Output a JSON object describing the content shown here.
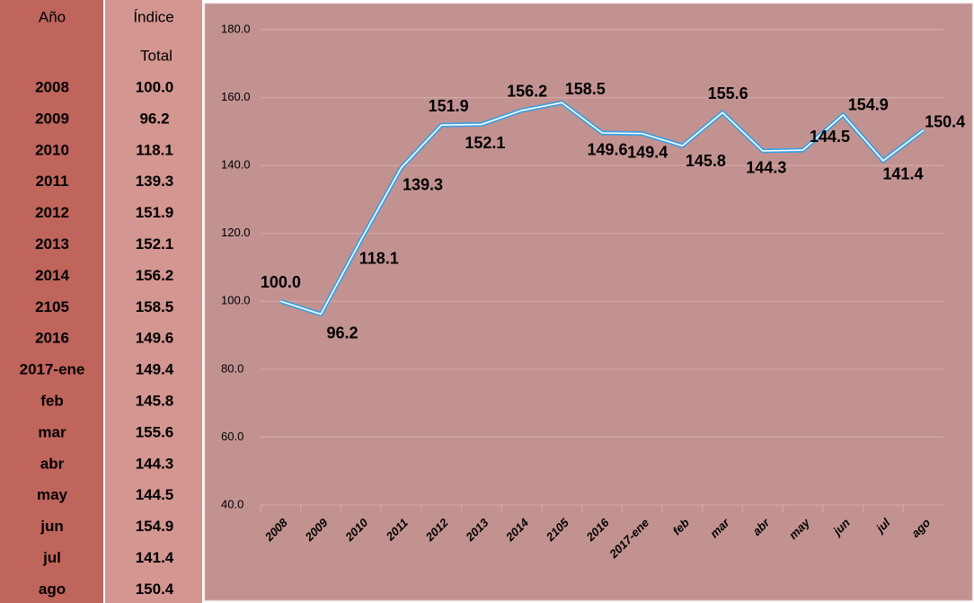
{
  "table": {
    "header": {
      "year": "Año",
      "index": [
        "Índice",
        "Total"
      ]
    },
    "rows": [
      [
        "2008",
        "100.0"
      ],
      [
        "2009",
        "96.2"
      ],
      [
        "2010",
        "118.1"
      ],
      [
        "2011",
        "139.3"
      ],
      [
        "2012",
        "151.9"
      ],
      [
        "2013",
        "152.1"
      ],
      [
        "2014",
        "156.2"
      ],
      [
        "2105",
        "158.5"
      ],
      [
        "2016",
        "149.6"
      ],
      [
        "2017-ene",
        "149.4"
      ],
      [
        "feb",
        "145.8"
      ],
      [
        "mar",
        "155.6"
      ],
      [
        "abr",
        "144.3"
      ],
      [
        "may",
        "144.5"
      ],
      [
        "jun",
        "154.9"
      ],
      [
        "jul",
        "141.4"
      ],
      [
        "ago",
        "150.4"
      ]
    ]
  },
  "chart_data": {
    "type": "line",
    "categories": [
      "2008",
      "2009",
      "2010",
      "2011",
      "2012",
      "2013",
      "2014",
      "2105",
      "2016",
      "2017-ene",
      "feb",
      "mar",
      "abr",
      "may",
      "jun",
      "jul",
      "ago"
    ],
    "series": [
      {
        "name": "Índice Total",
        "color": "#3a9fe0",
        "values": [
          100.0,
          96.2,
          118.1,
          139.3,
          151.9,
          152.1,
          156.2,
          158.5,
          149.6,
          149.4,
          145.8,
          155.6,
          144.3,
          144.5,
          154.9,
          141.4,
          150.4
        ],
        "value_labels": [
          "100.0",
          "96.2",
          "118.1",
          "139.3",
          "151.9",
          "152.1",
          "156.2",
          "158.5",
          "149.6",
          "149.4",
          "145.8",
          "155.6",
          "144.3",
          "144.5",
          "154.9",
          "141.4",
          "150.4"
        ]
      }
    ],
    "ylim": [
      40,
      180
    ],
    "yticks": [
      {
        "value": 40,
        "label": "40.0"
      },
      {
        "value": 60,
        "label": "60.0"
      },
      {
        "value": 80,
        "label": "80.0"
      },
      {
        "value": 100,
        "label": "100.0"
      },
      {
        "value": 120,
        "label": "120.0"
      },
      {
        "value": 140,
        "label": "140.0"
      },
      {
        "value": 160,
        "label": "160.0"
      },
      {
        "value": 180,
        "label": "180.0"
      }
    ],
    "grid": true
  }
}
